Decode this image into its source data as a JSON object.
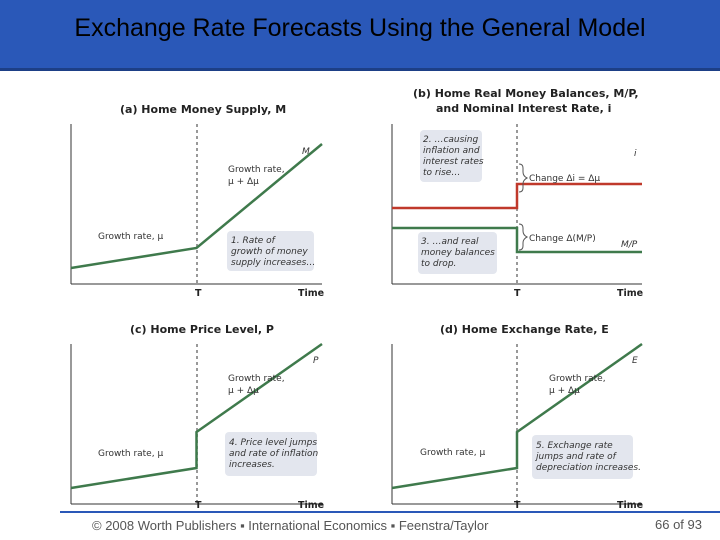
{
  "title": "Exchange Rate Forecasts Using the General Model",
  "footer": "© 2008 Worth Publishers ▪ International Economics ▪ Feenstra/Taylor",
  "page": "66 of 93",
  "colors": {
    "title_bar": "#2a58b8",
    "green_line": "#3f7a4c",
    "red_line": "#c0392b",
    "note_box": "#e3e6ee"
  },
  "chart_data": [
    {
      "type": "line",
      "title": "(a) Home Money Supply, M",
      "xlabel": "Time",
      "event_label": "T",
      "x": [
        0,
        1,
        2
      ],
      "series": [
        {
          "name": "M",
          "values": [
            0.2,
            0.45,
            1.75
          ],
          "color": "#3f7a4c"
        }
      ],
      "annotations": [
        "Growth rate, μ",
        "Growth rate, μ + Δμ",
        "1. Rate of growth of money supply increases…"
      ]
    },
    {
      "type": "line",
      "title": "(b) Home Real Money Balances, M/P, and Nominal Interest Rate, i",
      "xlabel": "Time",
      "event_label": "T",
      "x": [
        0,
        1,
        1,
        2
      ],
      "series": [
        {
          "name": "i",
          "values": [
            0.95,
            0.95,
            1.25,
            1.25
          ],
          "color": "#c0392b"
        },
        {
          "name": "M/P",
          "values": [
            0.7,
            0.7,
            0.4,
            0.4
          ],
          "color": "#3f7a4c"
        }
      ],
      "annotations": [
        "Change Δi = Δμ",
        "Change Δ(M/P)",
        "2. …causing inflation and interest rates to rise…",
        "3. …and real money balances to drop."
      ]
    },
    {
      "type": "line",
      "title": "(c) Home Price Level, P",
      "xlabel": "Time",
      "event_label": "T",
      "x": [
        0,
        1,
        1,
        2
      ],
      "series": [
        {
          "name": "P",
          "values": [
            0.2,
            0.45,
            0.9,
            2.0
          ],
          "color": "#3f7a4c"
        }
      ],
      "annotations": [
        "Growth rate, μ",
        "Growth rate, μ + Δμ",
        "4. Price level jumps and rate of inflation increases."
      ]
    },
    {
      "type": "line",
      "title": "(d) Home Exchange Rate, E",
      "xlabel": "Time",
      "event_label": "T",
      "x": [
        0,
        1,
        1,
        2
      ],
      "series": [
        {
          "name": "E",
          "values": [
            0.2,
            0.45,
            0.9,
            2.0
          ],
          "color": "#3f7a4c"
        }
      ],
      "annotations": [
        "Growth rate, μ",
        "Growth rate, μ + Δμ",
        "5. Exchange rate jumps and rate of depreciation increases."
      ]
    }
  ]
}
